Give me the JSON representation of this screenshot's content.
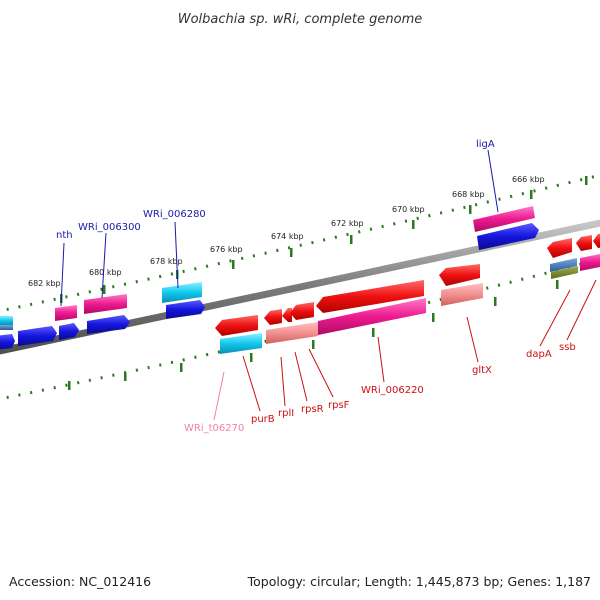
{
  "title": "Wolbachia sp. wRi, complete genome",
  "footer": {
    "accession": "Accession: NC_012416",
    "summary": "Topology: circular; Length: 1,445,873 bp; Genes: 1,187"
  },
  "colors": {
    "backbone": "#808080",
    "ruler": "#2a7a1f",
    "label_top": "#1a1aaa",
    "label_bottom": "#cc1111",
    "label_trna": "#f080b0",
    "gene_red": "#ee1111",
    "gene_blue": "#1515dd",
    "gene_magenta": "#ee1a90",
    "gene_cyan": "#12c8ee",
    "gene_pink": "#f29090"
  },
  "ruler": {
    "unit": "kbp",
    "ticks": [
      {
        "label": "682 kbp"
      },
      {
        "label": "680 kbp"
      },
      {
        "label": "678 kbp"
      },
      {
        "label": "676 kbp"
      },
      {
        "label": "674 kbp"
      },
      {
        "label": "672 kbp"
      },
      {
        "label": "670 kbp"
      },
      {
        "label": "668 kbp"
      },
      {
        "label": "666 kbp"
      }
    ]
  },
  "features": [
    {
      "name": "nth",
      "strand": "top"
    },
    {
      "name": "WRi_006300",
      "strand": "top"
    },
    {
      "name": "WRi_006280",
      "strand": "top"
    },
    {
      "name": "ligA",
      "strand": "top"
    },
    {
      "name": "WRi_t06270",
      "strand": "bottom",
      "kind": "tRNA"
    },
    {
      "name": "purB",
      "strand": "bottom"
    },
    {
      "name": "rplI",
      "strand": "bottom"
    },
    {
      "name": "rpsR",
      "strand": "bottom"
    },
    {
      "name": "rpsF",
      "strand": "bottom"
    },
    {
      "name": "WRi_006220",
      "strand": "bottom"
    },
    {
      "name": "gltX",
      "strand": "bottom"
    },
    {
      "name": "dapA",
      "strand": "bottom"
    },
    {
      "name": "ssb",
      "strand": "bottom"
    }
  ]
}
